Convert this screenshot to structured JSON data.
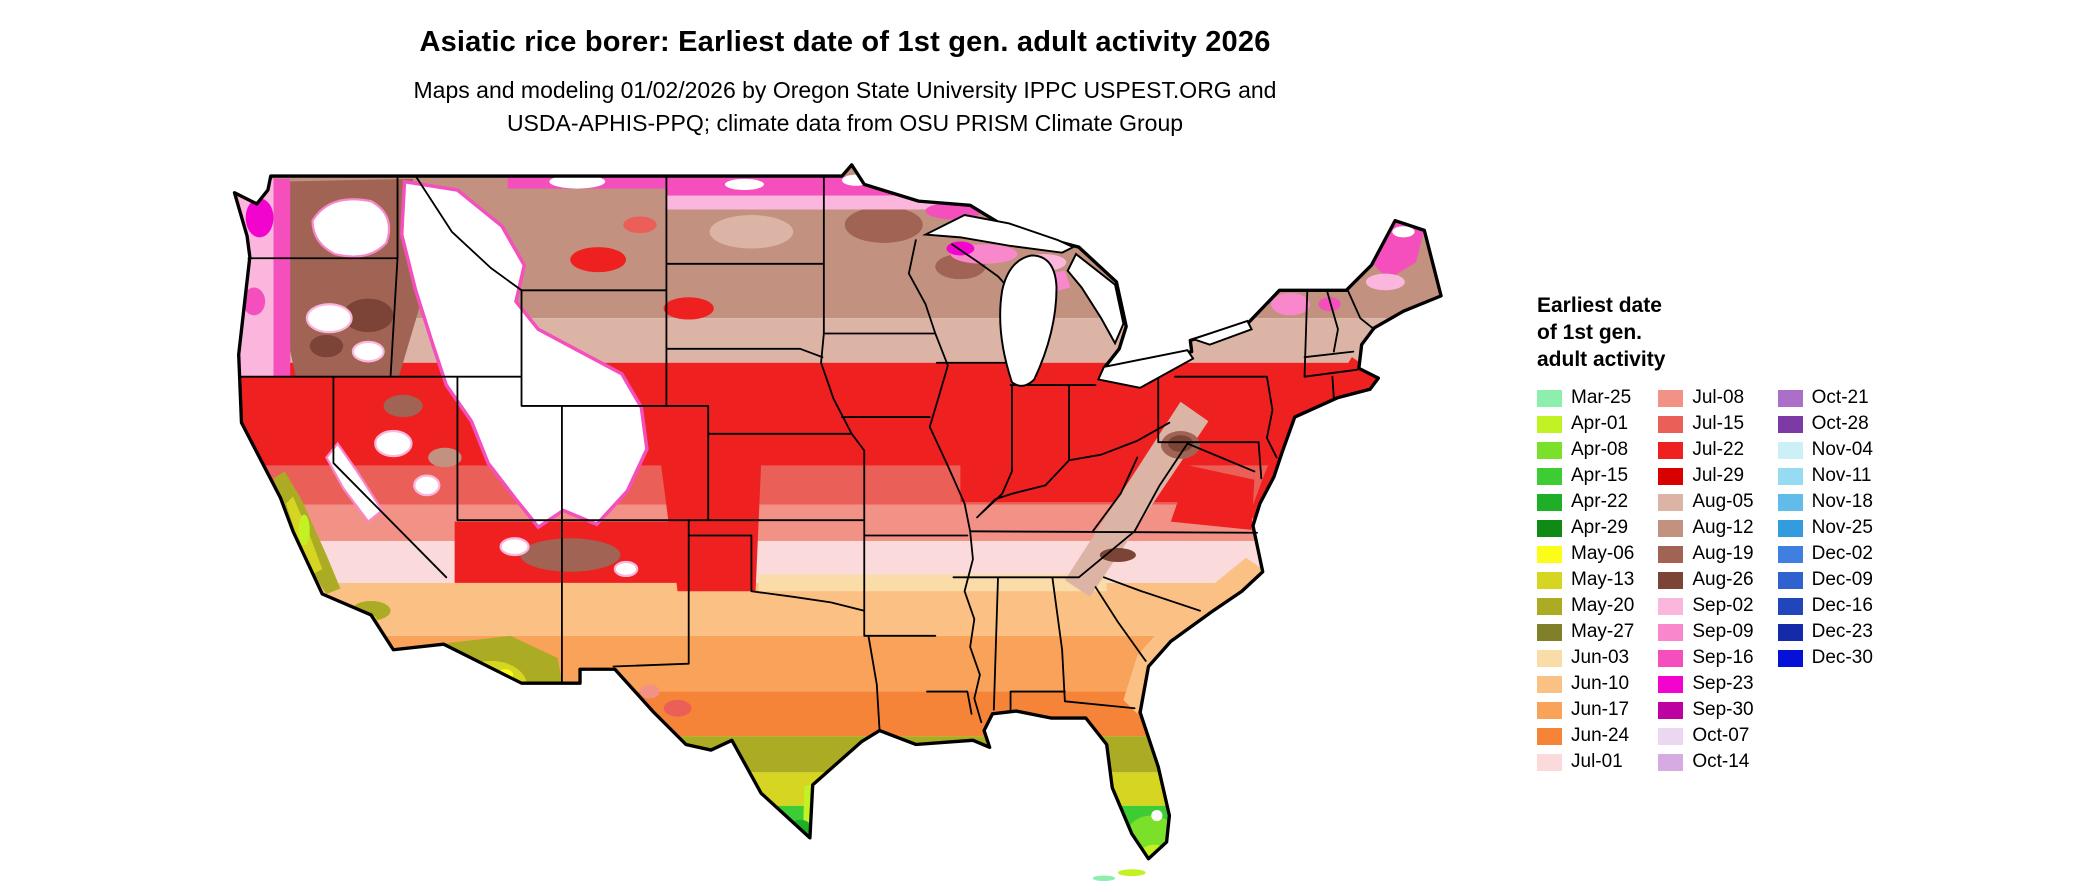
{
  "title": "Asiatic rice borer: Earliest date of 1st gen. adult activity 2026",
  "subtitle": {
    "line1": "Maps and modeling 01/02/2026 by Oregon State University IPPC USPEST.ORG and",
    "line2": "USDA-APHIS-PPQ; climate data from OSU PRISM Climate Group"
  },
  "legend": {
    "title_line1": "Earliest date",
    "title_line2": "of 1st gen.",
    "title_line3": "adult activity",
    "columns": [
      [
        {
          "label": "Mar-25",
          "color": "#8CEFAD"
        },
        {
          "label": "Apr-01",
          "color": "#C2F224"
        },
        {
          "label": "Apr-08",
          "color": "#7BE02A"
        },
        {
          "label": "Apr-15",
          "color": "#3ECC35"
        },
        {
          "label": "Apr-22",
          "color": "#1FAF26"
        },
        {
          "label": "Apr-29",
          "color": "#0F8A14"
        },
        {
          "label": "May-06",
          "color": "#FCFC19"
        },
        {
          "label": "May-13",
          "color": "#D6D622"
        },
        {
          "label": "May-20",
          "color": "#ABAB24"
        },
        {
          "label": "May-27",
          "color": "#80802A"
        },
        {
          "label": "Jun-03",
          "color": "#FADCA8"
        },
        {
          "label": "Jun-10",
          "color": "#FAC084"
        },
        {
          "label": "Jun-17",
          "color": "#F9A259"
        },
        {
          "label": "Jun-24",
          "color": "#F68438"
        },
        {
          "label": "Jul-01",
          "color": "#FADADA"
        }
      ],
      [
        {
          "label": "Jul-08",
          "color": "#F29287"
        },
        {
          "label": "Jul-15",
          "color": "#EA5F57"
        },
        {
          "label": "Jul-22",
          "color": "#EF2020"
        },
        {
          "label": "Jul-29",
          "color": "#D90000"
        },
        {
          "label": "Aug-05",
          "color": "#DCB4A6"
        },
        {
          "label": "Aug-12",
          "color": "#C29180"
        },
        {
          "label": "Aug-19",
          "color": "#A06354"
        },
        {
          "label": "Aug-26",
          "color": "#7C4437"
        },
        {
          "label": "Sep-02",
          "color": "#FBB6DE"
        },
        {
          "label": "Sep-09",
          "color": "#F887CB"
        },
        {
          "label": "Sep-16",
          "color": "#F44FBC"
        },
        {
          "label": "Sep-23",
          "color": "#F203CE"
        },
        {
          "label": "Sep-30",
          "color": "#BE02A2"
        },
        {
          "label": "Oct-07",
          "color": "#EBD7F0"
        },
        {
          "label": "Oct-14",
          "color": "#D5ABE2"
        }
      ],
      [
        {
          "label": "Oct-21",
          "color": "#AC6FC9"
        },
        {
          "label": "Oct-28",
          "color": "#7D3AA4"
        },
        {
          "label": "Nov-04",
          "color": "#CDEFF8"
        },
        {
          "label": "Nov-11",
          "color": "#97DBF2"
        },
        {
          "label": "Nov-18",
          "color": "#62BCEA"
        },
        {
          "label": "Nov-25",
          "color": "#339CDE"
        },
        {
          "label": "Dec-02",
          "color": "#3F7FE0"
        },
        {
          "label": "Dec-09",
          "color": "#2F62CE"
        },
        {
          "label": "Dec-16",
          "color": "#2146BC"
        },
        {
          "label": "Dec-23",
          "color": "#132AA9"
        },
        {
          "label": "Dec-30",
          "color": "#0511D6"
        }
      ]
    ]
  },
  "map": {
    "background_color": "#FFFFFF",
    "no_data_color": "#FFFFFF",
    "water_color": "#FFFFFF",
    "outline_color": "#000000",
    "state_border_color": "#000000"
  }
}
